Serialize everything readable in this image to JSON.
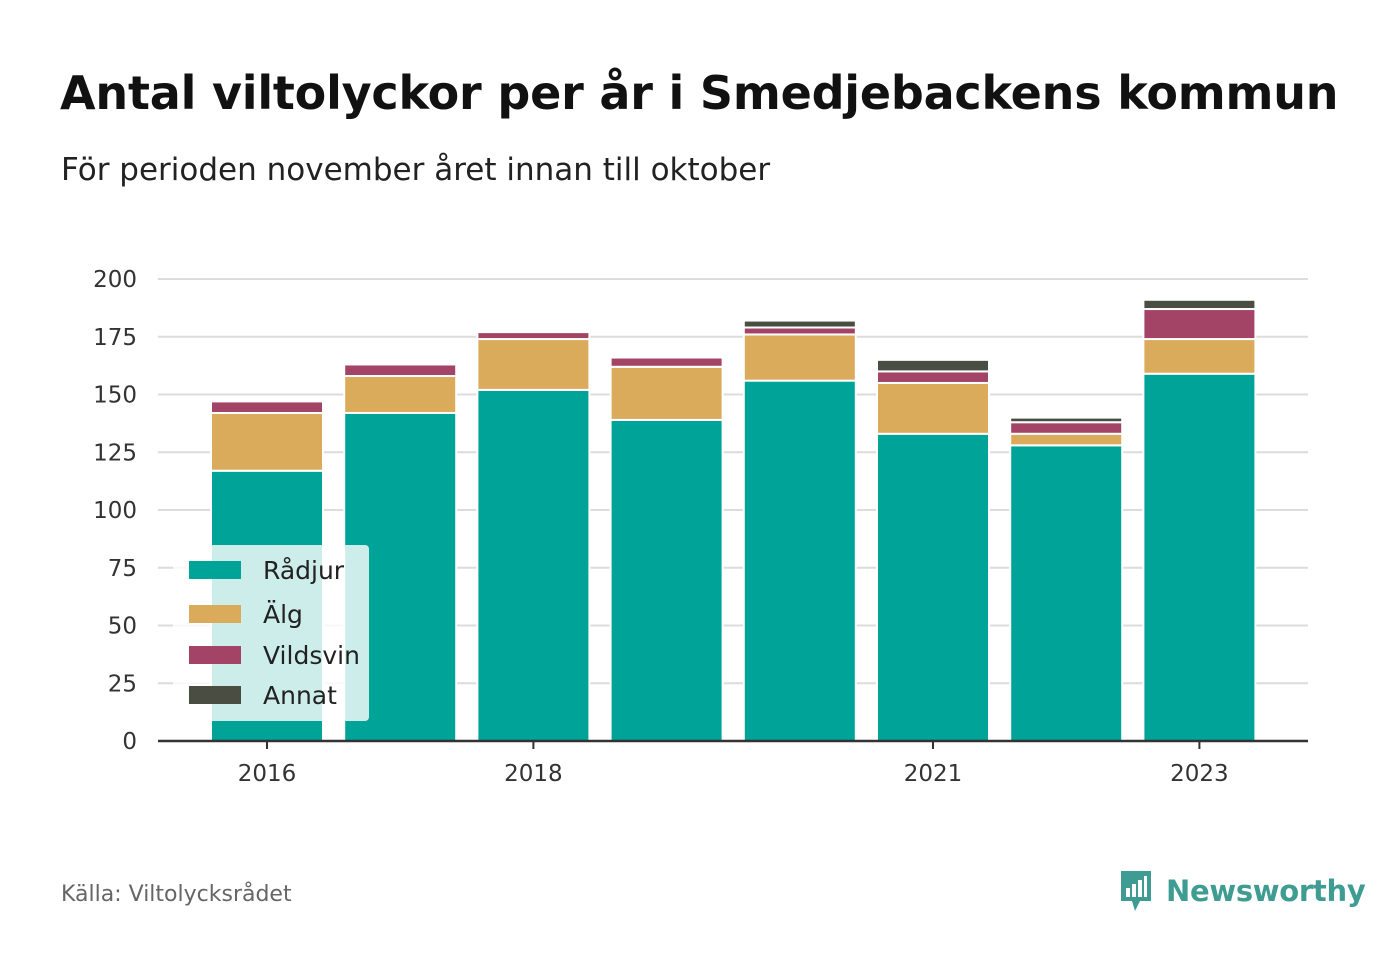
{
  "title": "Antal viltolyckor per år i Smedjebackens kommun",
  "subtitle": "För perioden november året innan till oktober",
  "source": "Källa: Viltolycksrådet",
  "brand": {
    "name": "Newsworthy",
    "color": "#3f9c93",
    "icon": "newsworthy-logo-icon"
  },
  "chart_data": {
    "type": "bar",
    "stacked": true,
    "categories": [
      "2016",
      "2017",
      "2018",
      "2019",
      "2020",
      "2021",
      "2022",
      "2023"
    ],
    "x_tick_labels": [
      "2016",
      "",
      "2018",
      "",
      "",
      "2021",
      "",
      "2023"
    ],
    "series": [
      {
        "name": "Rådjur",
        "color": "#00a398",
        "values": [
          117,
          142,
          152,
          139,
          156,
          133,
          128,
          159
        ]
      },
      {
        "name": "Älg",
        "color": "#d9ab5b",
        "values": [
          25,
          16,
          22,
          23,
          20,
          22,
          5,
          15
        ]
      },
      {
        "name": "Vildsvin",
        "color": "#a34365",
        "values": [
          5,
          5,
          3,
          4,
          3,
          5,
          5,
          13
        ]
      },
      {
        "name": "Annat",
        "color": "#4a4d42",
        "values": [
          0,
          0,
          0,
          0,
          3,
          5,
          2,
          4
        ]
      }
    ],
    "ylim": [
      0,
      200
    ],
    "yticks": [
      0,
      25,
      50,
      75,
      100,
      125,
      150,
      175,
      200
    ],
    "grid": true,
    "legend_position": "bottom-left",
    "xlabel": "",
    "ylabel": ""
  }
}
